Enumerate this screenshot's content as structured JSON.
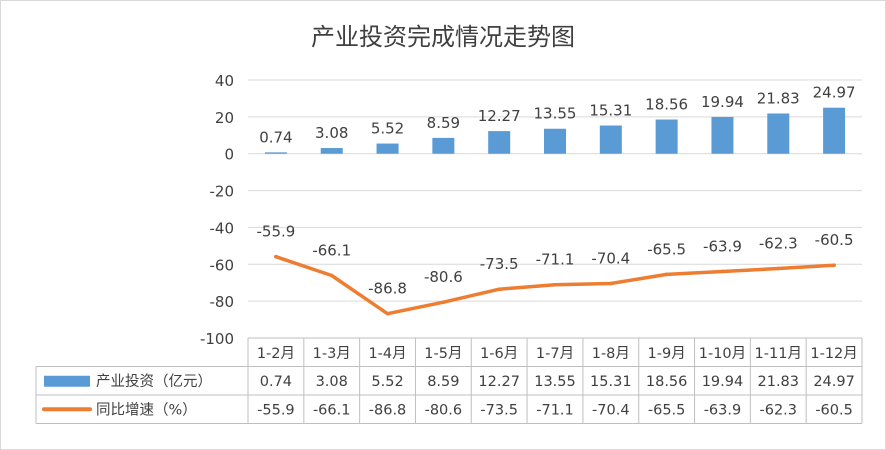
{
  "chart_data": {
    "type": "bar+line",
    "title": "产业投资完成情况走势图",
    "categories": [
      "1-2月",
      "1-3月",
      "1-4月",
      "1-5月",
      "1-6月",
      "1-7月",
      "1-8月",
      "1-9月",
      "1-10月",
      "1-11月",
      "1-12月"
    ],
    "ylim": [
      -100,
      40
    ],
    "yticks": [
      40,
      20,
      0,
      -20,
      -40,
      -60,
      -80,
      -100
    ],
    "grid": true,
    "legend": "data-table-left",
    "series": [
      {
        "name": "产业投资（亿元）",
        "type": "bar",
        "color": "#5b9bd5",
        "values": [
          0.74,
          3.08,
          5.52,
          8.59,
          12.27,
          13.55,
          15.31,
          18.56,
          19.94,
          21.83,
          24.97
        ],
        "labels": [
          "0.74",
          "3.08",
          "5.52",
          "8.59",
          "12.27",
          "13.55",
          "15.31",
          "18.56",
          "19.94",
          "21.83",
          "24.97"
        ]
      },
      {
        "name": "同比增速（%）",
        "type": "line",
        "color": "#ed7d31",
        "values": [
          -55.9,
          -66.1,
          -86.8,
          -80.6,
          -73.5,
          -71.1,
          -70.4,
          -65.5,
          -63.9,
          -62.3,
          -60.5
        ],
        "labels": [
          "-55.9",
          "-66.1",
          "-86.8",
          "-80.6",
          "-73.5",
          "-71.1",
          "-70.4",
          "-65.5",
          "-63.9",
          "-62.3",
          "-60.5"
        ]
      }
    ]
  }
}
